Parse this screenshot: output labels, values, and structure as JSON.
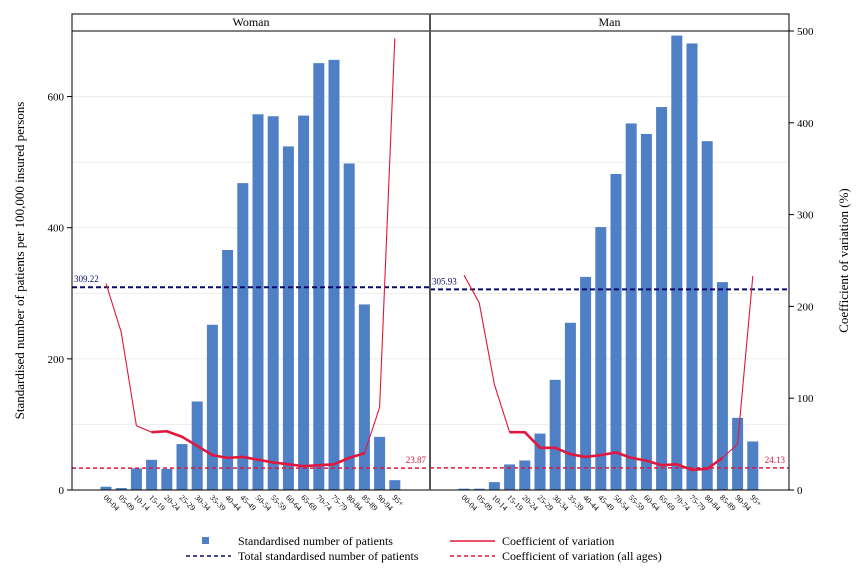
{
  "chart_data": {
    "type": "bar",
    "categories": [
      "00-04",
      "05-09",
      "10-14",
      "15-19",
      "20-24",
      "25-29",
      "30-34",
      "35-39",
      "40-44",
      "45-49",
      "50-54",
      "55-59",
      "60-64",
      "65-69",
      "70-74",
      "75-79",
      "80-84",
      "85-89",
      "90-94",
      "95+"
    ],
    "ylabel_left": "Standardised number of patients per 100,000 insured persons",
    "ylabel_right": "Coefficient of variation (%)",
    "ylim_left": [
      0,
      700
    ],
    "ylim_right": [
      0,
      500
    ],
    "yticks_left": [
      0,
      200,
      400,
      600
    ],
    "yticks_right": [
      0,
      100,
      200,
      300,
      400,
      500
    ],
    "grid": "horizontal",
    "legend_position": "bottom",
    "colors": {
      "bar": "#4F7FC5",
      "cv_line": "#E0173F",
      "total_line": "#0A0A6A",
      "cv_all_line": "#E0173F"
    },
    "panels": [
      {
        "title": "Woman",
        "bars": [
          5,
          3,
          33,
          46,
          32,
          70,
          135,
          252,
          366,
          468,
          573,
          570,
          524,
          571,
          651,
          656,
          498,
          283,
          81,
          15
        ],
        "cv": [
          225,
          172,
          70,
          63,
          64,
          58,
          48,
          38,
          35,
          36,
          33,
          30,
          28,
          26,
          27,
          28,
          35,
          40,
          90,
          492
        ],
        "cv_highlight_indices": [
          3,
          17
        ],
        "total_standardised": 309.22,
        "total_label": "309.22",
        "cv_all_ages": 23.87,
        "cv_all_label": "23.87"
      },
      {
        "title": "Man",
        "bars": [
          2,
          2,
          12,
          39,
          45,
          86,
          168,
          255,
          325,
          401,
          482,
          559,
          543,
          584,
          693,
          681,
          532,
          317,
          110,
          74
        ],
        "cv": [
          234,
          204,
          115,
          63,
          63,
          46,
          46,
          39,
          36,
          38,
          41,
          35,
          32,
          27,
          28,
          22,
          23,
          35,
          50,
          233
        ],
        "cv_highlight_indices": [
          3,
          17
        ],
        "total_standardised": 305.93,
        "total_label": "305.93",
        "cv_all_ages": 24.13,
        "cv_all_label": "24.13"
      }
    ],
    "legend": [
      {
        "key": "bars",
        "label": "Standardised number of patients"
      },
      {
        "key": "cv_line",
        "label": "Coefficient of variation"
      },
      {
        "key": "total_line",
        "label": "Total standardised number of patients"
      },
      {
        "key": "cv_all_line",
        "label": "Coefficient of variation (all ages)"
      }
    ]
  }
}
